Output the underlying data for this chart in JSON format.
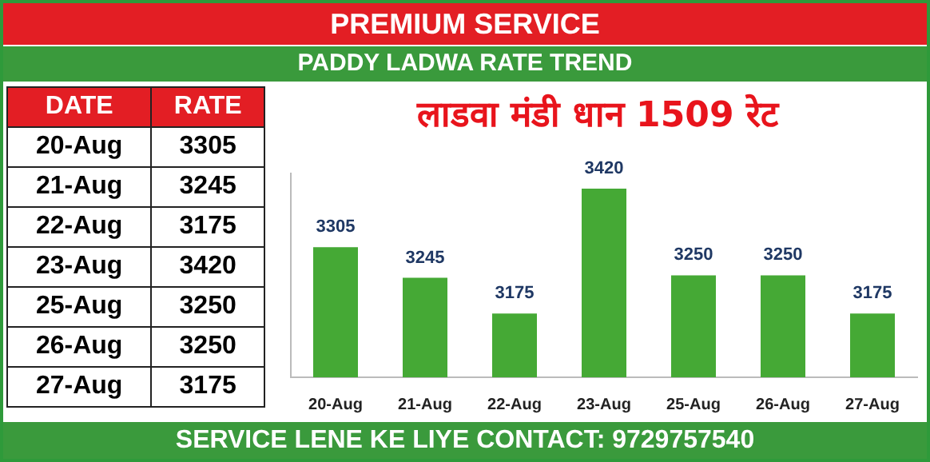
{
  "chart_data": [
    {
      "type": "other",
      "title": "PREMIUM SERVICE",
      "subtitle": "PADDY LADWA RATE TREND",
      "categories": [
        "20-Aug",
        "21-Aug",
        "22-Aug",
        "23-Aug",
        "25-Aug",
        "26-Aug",
        "27-Aug"
      ],
      "values": [
        3305,
        3245,
        3175,
        3420,
        3250,
        3250,
        3175
      ],
      "data_labels": true,
      "annotations": [
        "DATE",
        "RATE"
      ]
    },
    {
      "type": "bar",
      "title": "लाडवा मंडी धान 1509 रेट",
      "categories": [
        "20-Aug",
        "21-Aug",
        "22-Aug",
        "23-Aug",
        "25-Aug",
        "26-Aug",
        "27-Aug"
      ],
      "values": [
        3305,
        3245,
        3175,
        3420,
        3250,
        3250,
        3175
      ],
      "color": "#45a935",
      "data_labels": true,
      "ylim": [
        3050,
        3450
      ],
      "tick_labels": "x",
      "annotations": [
        "SERVICE LENE KE LIYE CONTACT: 9729757540"
      ]
    }
  ]
}
